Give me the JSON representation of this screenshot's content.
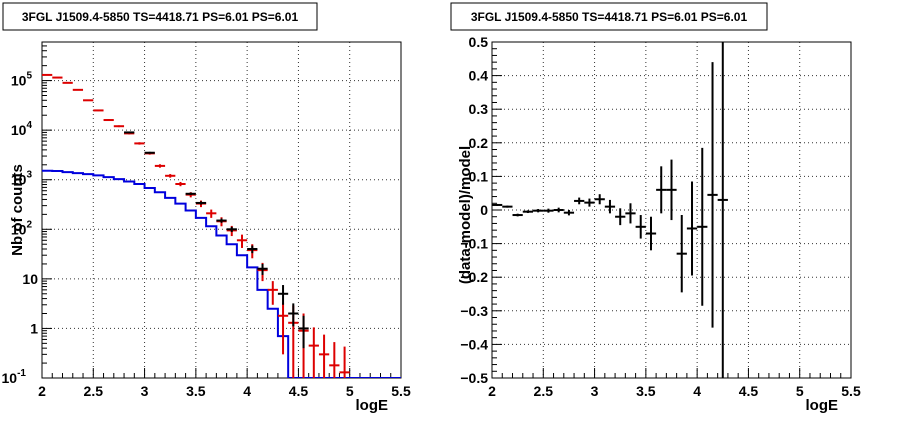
{
  "chart_data": [
    {
      "type": "scatter",
      "title": "3FGL J1509.4-5850 TS=4418.71 PS=6.01 PS=6.01",
      "xlabel": "logE",
      "ylabel": "Nb of counts",
      "xlim": [
        2,
        5.5
      ],
      "ylim": [
        0.1,
        600000
      ],
      "yscale": "log",
      "grid": true,
      "x_ticks": [
        "2",
        "2.5",
        "3",
        "3.5",
        "4",
        "4.5",
        "5",
        "5.5"
      ],
      "y_ticks": [
        {
          "value": 0.1,
          "label": "10",
          "exp": "-1"
        },
        {
          "value": 1,
          "label": "1",
          "exp": ""
        },
        {
          "value": 10,
          "label": "10",
          "exp": ""
        },
        {
          "value": 100,
          "label": "10",
          "exp": "2"
        },
        {
          "value": 1000,
          "label": "10",
          "exp": "3"
        },
        {
          "value": 10000,
          "label": "10",
          "exp": "4"
        },
        {
          "value": 100000,
          "label": "10",
          "exp": "5"
        }
      ],
      "series": [
        {
          "kind": "step",
          "color": "#0000dd",
          "bin_width": 0.1,
          "x": [
            2.05,
            2.15,
            2.25,
            2.35,
            2.45,
            2.55,
            2.65,
            2.75,
            2.85,
            2.95,
            3.05,
            3.15,
            3.25,
            3.35,
            3.45,
            3.55,
            3.65,
            3.75,
            3.85,
            3.95,
            4.05,
            4.15,
            4.25,
            4.35,
            4.45,
            4.55,
            4.65,
            4.75,
            4.85,
            4.95,
            5.05,
            5.15,
            5.25,
            5.35,
            5.45
          ],
          "y": [
            1520,
            1500,
            1420,
            1360,
            1300,
            1220,
            1130,
            1030,
            920,
            820,
            680,
            560,
            430,
            330,
            240,
            170,
            115,
            75,
            50,
            30,
            17,
            6,
            2.5,
            0.7,
            0.1,
            0.1,
            0.1,
            0.1,
            0.1,
            0.1,
            0.1,
            0.1,
            0.1,
            0.1,
            0.1
          ]
        },
        {
          "kind": "errorbar",
          "color": "#dd0000",
          "x": [
            2.05,
            2.15,
            2.25,
            2.35,
            2.45,
            2.55,
            2.65,
            2.75,
            2.85,
            2.95,
            3.05,
            3.15,
            3.25,
            3.35,
            3.45,
            3.55,
            3.65,
            3.75,
            3.85,
            3.95,
            4.05,
            4.15,
            4.25,
            4.35,
            4.45,
            4.55,
            4.65,
            4.75,
            4.85,
            4.95
          ],
          "y": [
            130000,
            115000,
            90000,
            65000,
            40000,
            25000,
            16000,
            12000,
            8600,
            5400,
            3400,
            1900,
            1200,
            820,
            500,
            330,
            210,
            145,
            95,
            60,
            38,
            15,
            6,
            1.8,
            1.3,
            0.9,
            0.45,
            0.3,
            0.18,
            0.13
          ],
          "yerr_low": [
            3000,
            2500,
            2000,
            1500,
            1200,
            900,
            700,
            500,
            400,
            300,
            200,
            150,
            100,
            80,
            60,
            50,
            40,
            30,
            22,
            18,
            12,
            6,
            3,
            1.5,
            1.2,
            0.85,
            0.35,
            0.2,
            0.08,
            0.03
          ],
          "yerr_high": [
            3000,
            2500,
            2000,
            1500,
            1200,
            900,
            700,
            500,
            400,
            300,
            200,
            150,
            100,
            80,
            60,
            50,
            40,
            30,
            22,
            18,
            12,
            6,
            3,
            1.5,
            1.6,
            1.1,
            0.6,
            0.45,
            0.35,
            0.3
          ]
        },
        {
          "kind": "errorbar",
          "color": "#000000",
          "x": [
            2.85,
            3.05,
            3.45,
            3.55,
            3.75,
            3.85,
            4.05,
            4.15,
            4.35,
            4.45,
            4.55
          ],
          "y": [
            9000,
            3500,
            520,
            340,
            150,
            100,
            40,
            16,
            5,
            2,
            1
          ],
          "yerr_low": [
            300,
            150,
            30,
            25,
            15,
            12,
            7,
            4,
            2,
            0.9,
            0.6
          ],
          "yerr_high": [
            300,
            150,
            30,
            25,
            15,
            12,
            7,
            4,
            2.5,
            1.2,
            0.8
          ]
        }
      ]
    },
    {
      "type": "scatter",
      "title": "3FGL J1509.4-5850 TS=4418.71 PS=6.01 PS=6.01",
      "xlabel": "logE",
      "ylabel": "(data-model)/model",
      "xlim": [
        2,
        5.5
      ],
      "ylim": [
        -0.5,
        0.5
      ],
      "grid": true,
      "x_ticks": [
        "2",
        "2.5",
        "3",
        "3.5",
        "4",
        "4.5",
        "5",
        "5.5"
      ],
      "y_ticks": [
        {
          "value": -0.5,
          "label": "−0.5"
        },
        {
          "value": -0.4,
          "label": "−0.4"
        },
        {
          "value": -0.3,
          "label": "−0.3"
        },
        {
          "value": -0.2,
          "label": "−0.2"
        },
        {
          "value": -0.1,
          "label": "−0.1"
        },
        {
          "value": 0,
          "label": "0"
        },
        {
          "value": 0.1,
          "label": "0.1"
        },
        {
          "value": 0.2,
          "label": "0.2"
        },
        {
          "value": 0.3,
          "label": "0.3"
        },
        {
          "value": 0.4,
          "label": "0.4"
        },
        {
          "value": 0.5,
          "label": "0.5"
        }
      ],
      "series": [
        {
          "kind": "errorbar",
          "color": "#000000",
          "bin_width": 0.1,
          "x": [
            2.05,
            2.15,
            2.25,
            2.35,
            2.45,
            2.55,
            2.65,
            2.75,
            2.85,
            2.95,
            3.05,
            3.15,
            3.25,
            3.35,
            3.45,
            3.55,
            3.65,
            3.75,
            3.85,
            3.95,
            4.05,
            4.15,
            4.25
          ],
          "y": [
            0.015,
            0.01,
            -0.015,
            -0.005,
            -0.002,
            -0.002,
            0.0,
            -0.008,
            0.027,
            0.022,
            0.032,
            0.01,
            -0.02,
            -0.01,
            -0.05,
            -0.07,
            0.06,
            0.06,
            -0.13,
            -0.055,
            -0.05,
            0.045,
            0.03
          ],
          "yerr": [
            0.003,
            0.003,
            0.004,
            0.004,
            0.005,
            0.006,
            0.007,
            0.008,
            0.01,
            0.012,
            0.015,
            0.02,
            0.025,
            0.03,
            0.035,
            0.05,
            0.07,
            0.09,
            0.115,
            0.14,
            0.235,
            0.395,
            0.7
          ]
        }
      ]
    }
  ]
}
